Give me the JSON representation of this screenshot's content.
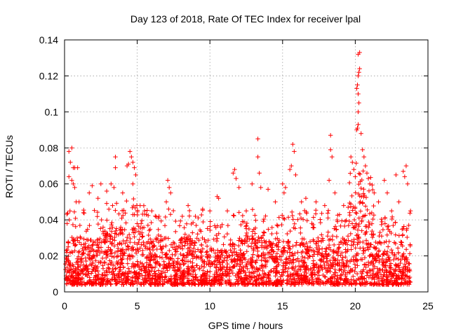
{
  "chart_data": {
    "type": "scatter",
    "title": "Day 123 of 2018, Rate Of TEC Index for receiver lpal",
    "xlabel": "GPS time / hours",
    "ylabel": "ROTI / TECUs",
    "xlim": [
      0,
      25
    ],
    "ylim": [
      0,
      0.14
    ],
    "grid": true,
    "xticks": [
      0,
      5,
      10,
      15,
      20,
      25
    ],
    "xtick_labels": [
      "0",
      "5",
      "10",
      "15",
      "20",
      "25"
    ],
    "yticks": [
      0,
      0.02,
      0.04,
      0.06,
      0.08,
      0.1,
      0.12,
      0.14
    ],
    "ytick_labels": [
      "0",
      "0.02",
      "0.04",
      "0.06",
      "0.08",
      "0.1",
      "0.12",
      "0.14"
    ],
    "marker": "+",
    "color": "#ff0000",
    "series": [
      {
        "name": "ROTI",
        "description": "dense scatter of ROTI samples, mostly 0.005-0.035 TECU/min over 0-24 h",
        "points": [
          [
            0.3,
            0.078
          ],
          [
            0.5,
            0.08
          ],
          [
            0.4,
            0.072
          ],
          [
            0.6,
            0.069
          ],
          [
            0.7,
            0.069
          ],
          [
            0.9,
            0.069
          ],
          [
            0.5,
            0.062
          ],
          [
            0.6,
            0.06
          ],
          [
            0.7,
            0.058
          ],
          [
            0.3,
            0.064
          ],
          [
            0.8,
            0.05
          ],
          [
            1.0,
            0.05
          ],
          [
            1.7,
            0.055
          ],
          [
            1.9,
            0.059
          ],
          [
            2.3,
            0.052
          ],
          [
            2.5,
            0.06
          ],
          [
            2.9,
            0.056
          ],
          [
            3.2,
            0.06
          ],
          [
            3.4,
            0.058
          ],
          [
            3.5,
            0.069
          ],
          [
            3.5,
            0.075
          ],
          [
            4.3,
            0.07
          ],
          [
            4.4,
            0.071
          ],
          [
            4.5,
            0.078
          ],
          [
            4.6,
            0.075
          ],
          [
            4.7,
            0.072
          ],
          [
            4.8,
            0.069
          ],
          [
            4.9,
            0.065
          ],
          [
            4.7,
            0.06
          ],
          [
            4.0,
            0.055
          ],
          [
            5.2,
            0.048
          ],
          [
            5.5,
            0.045
          ],
          [
            6.0,
            0.045
          ],
          [
            6.5,
            0.042
          ],
          [
            7.1,
            0.062
          ],
          [
            7.2,
            0.058
          ],
          [
            7.3,
            0.055
          ],
          [
            7.0,
            0.05
          ],
          [
            8.1,
            0.042
          ],
          [
            8.5,
            0.048
          ],
          [
            9.0,
            0.042
          ],
          [
            9.5,
            0.046
          ],
          [
            10.0,
            0.045
          ],
          [
            10.5,
            0.053
          ],
          [
            10.6,
            0.052
          ],
          [
            11.2,
            0.045
          ],
          [
            11.6,
            0.066
          ],
          [
            11.7,
            0.068
          ],
          [
            11.8,
            0.063
          ],
          [
            12.0,
            0.058
          ],
          [
            12.5,
            0.045
          ],
          [
            12.9,
            0.06
          ],
          [
            13.3,
            0.085
          ],
          [
            13.3,
            0.075
          ],
          [
            13.4,
            0.066
          ],
          [
            13.5,
            0.058
          ],
          [
            14.0,
            0.057
          ],
          [
            14.5,
            0.05
          ],
          [
            15.0,
            0.06
          ],
          [
            15.1,
            0.055
          ],
          [
            15.2,
            0.058
          ],
          [
            15.5,
            0.068
          ],
          [
            15.6,
            0.07
          ],
          [
            15.7,
            0.082
          ],
          [
            15.8,
            0.078
          ],
          [
            15.9,
            0.065
          ],
          [
            16.3,
            0.05
          ],
          [
            16.6,
            0.052
          ],
          [
            17.3,
            0.05
          ],
          [
            17.9,
            0.048
          ],
          [
            18.2,
            0.062
          ],
          [
            18.3,
            0.087
          ],
          [
            18.3,
            0.079
          ],
          [
            18.4,
            0.075
          ],
          [
            18.6,
            0.055
          ],
          [
            19.2,
            0.048
          ],
          [
            19.7,
            0.075
          ],
          [
            19.8,
            0.072
          ],
          [
            19.9,
            0.068
          ],
          [
            20.0,
            0.064
          ],
          [
            20.1,
            0.09
          ],
          [
            20.15,
            0.091
          ],
          [
            20.2,
            0.093
          ],
          [
            20.2,
            0.1
          ],
          [
            20.25,
            0.105
          ],
          [
            20.2,
            0.11
          ],
          [
            20.1,
            0.113
          ],
          [
            20.15,
            0.115
          ],
          [
            20.2,
            0.12
          ],
          [
            20.25,
            0.122
          ],
          [
            20.3,
            0.124
          ],
          [
            20.2,
            0.132
          ],
          [
            20.3,
            0.133
          ],
          [
            20.4,
            0.088
          ],
          [
            20.5,
            0.079
          ],
          [
            20.6,
            0.075
          ],
          [
            20.7,
            0.07
          ],
          [
            20.8,
            0.066
          ],
          [
            20.9,
            0.063
          ],
          [
            21.0,
            0.06
          ],
          [
            21.3,
            0.055
          ],
          [
            21.6,
            0.05
          ],
          [
            22.0,
            0.062
          ],
          [
            22.2,
            0.055
          ],
          [
            22.5,
            0.045
          ],
          [
            22.8,
            0.065
          ],
          [
            23.0,
            0.05
          ],
          [
            23.3,
            0.067
          ],
          [
            23.4,
            0.064
          ],
          [
            23.5,
            0.07
          ],
          [
            23.6,
            0.06
          ],
          [
            23.8,
            0.045
          ]
        ]
      }
    ]
  }
}
